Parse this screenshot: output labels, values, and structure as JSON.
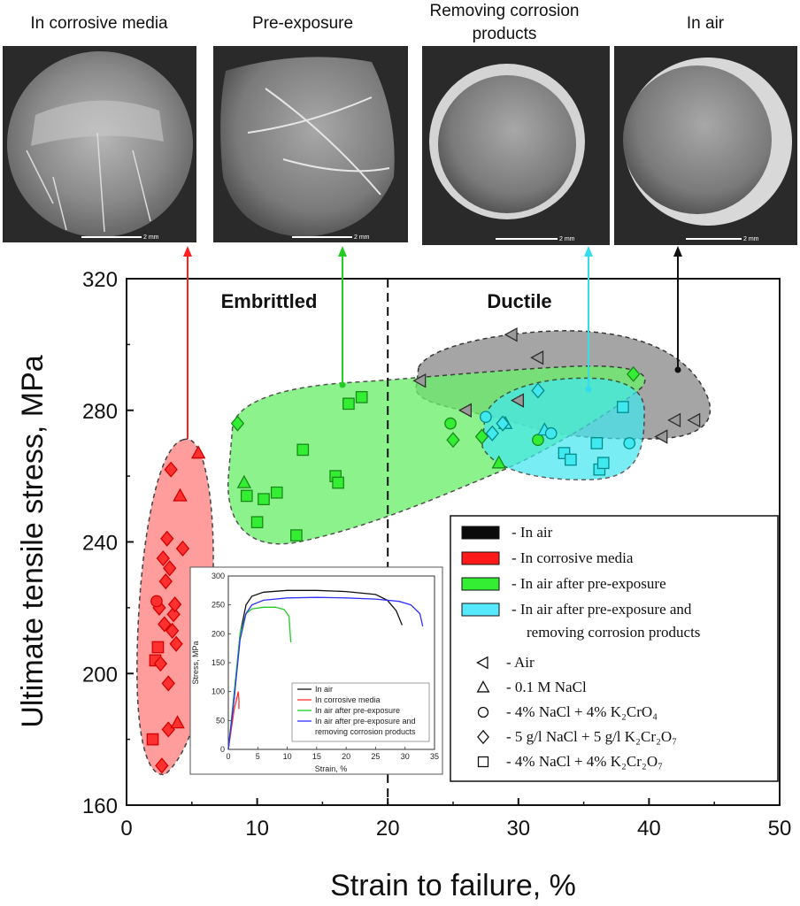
{
  "photos": {
    "titles": [
      "In corrosive media",
      "Pre-exposure",
      "Removing corrosion",
      "products",
      "In air"
    ],
    "scale_label": "2 mm"
  },
  "chart_data": {
    "type": "scatter",
    "xlabel": "Strain to failure, %",
    "ylabel": "Ultimate tensile stress, MPa",
    "xlim": [
      0,
      50
    ],
    "ylim": [
      160,
      320
    ],
    "xticks": [
      "0",
      "10",
      "20",
      "30",
      "40",
      "50"
    ],
    "yticks": [
      "160",
      "200",
      "240",
      "280",
      "320"
    ],
    "boundary_x": 20,
    "regions": [
      "Embrittled",
      "Ductile"
    ],
    "series": [
      {
        "name": "In air",
        "color": "#2f2f2f",
        "fill": "#9a9a9a",
        "points": [
          [
            22.5,
            289,
            "tri-left"
          ],
          [
            26,
            280,
            "tri-left"
          ],
          [
            29.5,
            303,
            "tri-left"
          ],
          [
            30,
            283,
            "tri-left"
          ],
          [
            31.5,
            296,
            "tri-left"
          ],
          [
            41,
            272,
            "tri-left"
          ],
          [
            42,
            277,
            "tri-left"
          ],
          [
            43.5,
            277,
            "tri-left"
          ]
        ]
      },
      {
        "name": "In corrosive media",
        "color": "#d40000",
        "fill": "#ff3030",
        "points": [
          [
            2,
            180,
            "square"
          ],
          [
            2.2,
            204,
            "square"
          ],
          [
            2.4,
            208,
            "square"
          ],
          [
            2.5,
            220,
            "diamond"
          ],
          [
            2.6,
            203,
            "diamond"
          ],
          [
            2.7,
            172,
            "diamond"
          ],
          [
            2.8,
            235,
            "diamond"
          ],
          [
            2.9,
            215,
            "diamond"
          ],
          [
            3,
            228,
            "diamond"
          ],
          [
            3.1,
            241,
            "diamond"
          ],
          [
            3.2,
            183,
            "diamond"
          ],
          [
            3.3,
            232,
            "diamond"
          ],
          [
            3.4,
            262,
            "diamond"
          ],
          [
            3.5,
            213,
            "diamond"
          ],
          [
            3.6,
            218,
            "diamond"
          ],
          [
            3.7,
            221,
            "diamond"
          ],
          [
            3.8,
            209,
            "diamond"
          ],
          [
            3.9,
            185,
            "tri-up"
          ],
          [
            4.1,
            254,
            "tri-up"
          ],
          [
            4.3,
            238,
            "diamond"
          ],
          [
            5.5,
            267,
            "tri-up"
          ],
          [
            2.3,
            222,
            "circle"
          ],
          [
            3.2,
            197,
            "diamond"
          ]
        ]
      },
      {
        "name": "In air after pre-exposure",
        "color": "#1a8a1a",
        "fill": "#33ee33",
        "points": [
          [
            8.5,
            276,
            "diamond"
          ],
          [
            9,
            258,
            "tri-up"
          ],
          [
            9.2,
            254,
            "square"
          ],
          [
            10,
            246,
            "square"
          ],
          [
            10.5,
            253,
            "square"
          ],
          [
            11.5,
            255,
            "square"
          ],
          [
            13,
            242,
            "square"
          ],
          [
            13.5,
            268,
            "square"
          ],
          [
            16,
            260,
            "square"
          ],
          [
            16.2,
            258,
            "square"
          ],
          [
            17,
            282,
            "square"
          ],
          [
            18,
            284,
            "square"
          ],
          [
            25,
            271,
            "diamond"
          ],
          [
            27.2,
            272,
            "diamond"
          ],
          [
            28.5,
            264,
            "tri-up"
          ],
          [
            31.5,
            271,
            "circle"
          ],
          [
            38.8,
            291,
            "diamond"
          ],
          [
            24.8,
            276,
            "circle"
          ]
        ]
      },
      {
        "name": "In air after pre-exposure and removing corrosion products",
        "color": "#008b8b",
        "fill": "#40e8f0",
        "points": [
          [
            27.5,
            278,
            "circle"
          ],
          [
            28,
            273,
            "diamond"
          ],
          [
            29,
            276,
            "tri-up"
          ],
          [
            31.5,
            286,
            "diamond"
          ],
          [
            32,
            274,
            "tri-up"
          ],
          [
            32.5,
            273,
            "circle"
          ],
          [
            33.5,
            267,
            "square"
          ],
          [
            34,
            265,
            "square"
          ],
          [
            36,
            270,
            "square"
          ],
          [
            36.2,
            262,
            "square"
          ],
          [
            36.5,
            264,
            "square"
          ],
          [
            38,
            281,
            "square"
          ],
          [
            38.5,
            270,
            "circle"
          ],
          [
            28.8,
            276,
            "diamond"
          ]
        ]
      }
    ],
    "legend_colors": [
      {
        "label": "-  In air",
        "fill": "#0a0a0a"
      },
      {
        "label": "-  In corrosive  media",
        "fill": "#ff1a1a"
      },
      {
        "label": "-  In air after pre-exposure",
        "fill": "#33ee33"
      },
      {
        "label": "-  In air after pre-exposure  and",
        "fill": "#55e8ff"
      }
    ],
    "legend_color_cont": "removing corrosion products",
    "legend_markers": [
      {
        "shape": "tri-left",
        "label": "-  Air"
      },
      {
        "shape": "tri-up",
        "label": "-  0.1 M NaCl"
      },
      {
        "shape": "circle",
        "label": "-  4% NaCl + 4% K₂CrO₄"
      },
      {
        "shape": "diamond",
        "label": "-  5 g/l NaCl + 5 g/l K₂Cr₂O₇"
      },
      {
        "shape": "square",
        "label": "-  4% NaCl + 4% K₂Cr₂O₇"
      }
    ],
    "inset": {
      "xlabel": "Strain, %",
      "ylabel": "Stress, MPa",
      "xlim": [
        0,
        35
      ],
      "ylim": [
        0,
        300
      ],
      "xticks": [
        "0",
        "5",
        "10",
        "15",
        "20",
        "25",
        "30",
        "35"
      ],
      "yticks": [
        "0",
        "50",
        "100",
        "150",
        "200",
        "250",
        "300"
      ],
      "curves": [
        {
          "name": "In air",
          "color": "#111111",
          "points": [
            [
              0,
              0
            ],
            [
              1,
              90
            ],
            [
              2,
              200
            ],
            [
              3,
              250
            ],
            [
              4,
              265
            ],
            [
              6,
              272
            ],
            [
              10,
              275
            ],
            [
              15,
              275
            ],
            [
              20,
              273
            ],
            [
              25,
              268
            ],
            [
              27,
              258
            ],
            [
              28.5,
              240
            ],
            [
              29.5,
              215
            ]
          ]
        },
        {
          "name": "In corrosive media",
          "color": "#ff3030",
          "points": [
            [
              0,
              0
            ],
            [
              1,
              70
            ],
            [
              1.7,
              100
            ],
            [
              1.8,
              85
            ],
            [
              1.8,
              70
            ]
          ]
        },
        {
          "name": "In air after pre-exposure",
          "color": "#22cc22",
          "points": [
            [
              0,
              0
            ],
            [
              1,
              100
            ],
            [
              2,
              200
            ],
            [
              3,
              235
            ],
            [
              4,
              243
            ],
            [
              6,
              246
            ],
            [
              8,
              246
            ],
            [
              9.5,
              242
            ],
            [
              10.3,
              230
            ],
            [
              10.6,
              185
            ]
          ]
        },
        {
          "name": "In air after pre-exposure and removing corrosion products",
          "color": "#3030ff",
          "points": [
            [
              0,
              0
            ],
            [
              1,
              90
            ],
            [
              2,
              190
            ],
            [
              3,
              235
            ],
            [
              4,
              250
            ],
            [
              6,
              258
            ],
            [
              10,
              262
            ],
            [
              15,
              263
            ],
            [
              20,
              262
            ],
            [
              25,
              260
            ],
            [
              29,
              256
            ],
            [
              31,
              250
            ],
            [
              32.5,
              235
            ],
            [
              33,
              213
            ]
          ]
        }
      ],
      "legend": [
        "In air",
        "In corrosive media",
        "In air after pre-exposure",
        "In air after pre-exposure and",
        "removing corrosion products"
      ]
    }
  }
}
